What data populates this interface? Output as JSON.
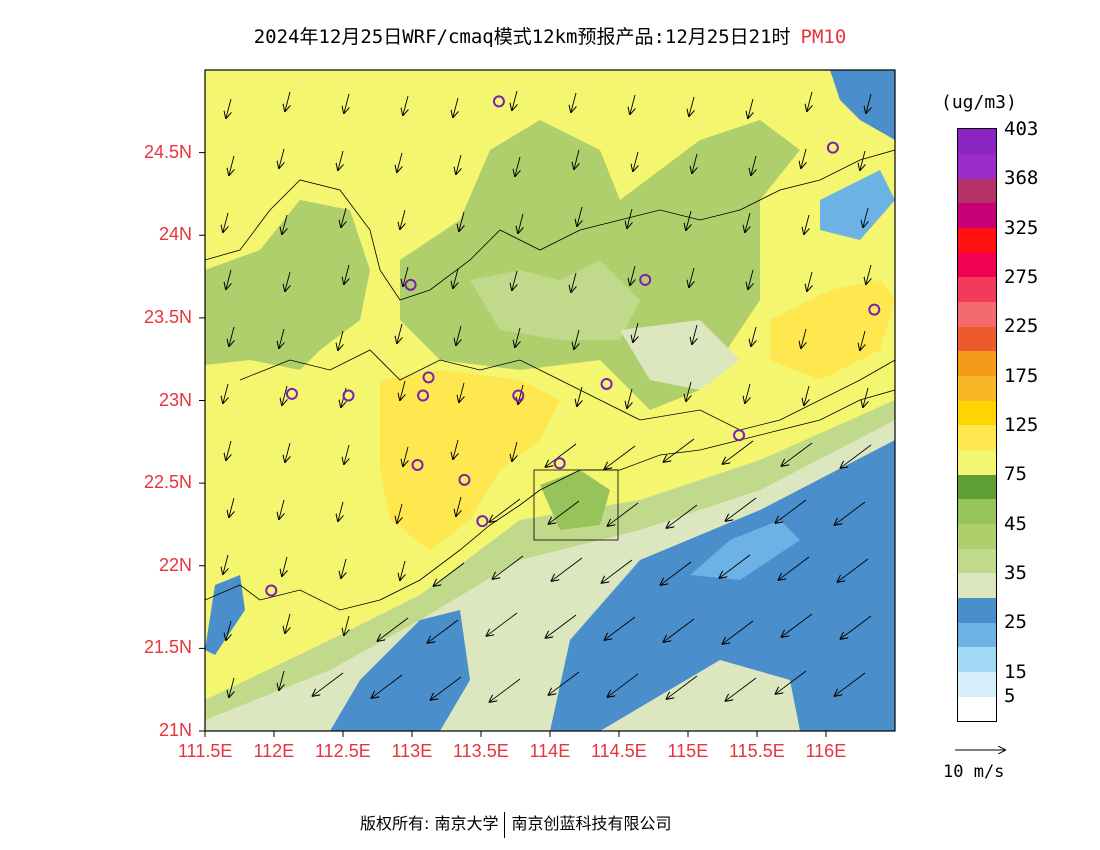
{
  "title": {
    "main": "2024年12月25日WRF/cmaq模式12km预报产品:12月25日21时",
    "species": "PM10"
  },
  "colorbar": {
    "unit": "(ug/m3)",
    "colors": [
      "#ffffff",
      "#d4eefa",
      "#a2d9f5",
      "#6cb2e4",
      "#4a8fcb",
      "#dde7bf",
      "#c1d98a",
      "#aecf6b",
      "#96c35a",
      "#5f9d36",
      "#f3f66e",
      "#ffe84f",
      "#ffd400",
      "#f9b728",
      "#f69a1a",
      "#ee5a2c",
      "#f46a6d",
      "#f23b5c",
      "#f20052",
      "#ff1111",
      "#c70076",
      "#b43067",
      "#9b2acb",
      "#8a25c4"
    ],
    "labels": [
      {
        "text": "403",
        "boundary": 23
      },
      {
        "text": "368",
        "boundary": 21
      },
      {
        "text": "325",
        "boundary": 19
      },
      {
        "text": "275",
        "boundary": 17
      },
      {
        "text": "225",
        "boundary": 15
      },
      {
        "text": "175",
        "boundary": 13
      },
      {
        "text": "125",
        "boundary": 11
      },
      {
        "text": "75",
        "boundary": 9
      },
      {
        "text": "45",
        "boundary": 7
      },
      {
        "text": "35",
        "boundary": 5
      },
      {
        "text": "25",
        "boundary": 3
      },
      {
        "text": "15",
        "boundary": 1
      },
      {
        "text": "5",
        "boundary": 0
      }
    ]
  },
  "wind_reference": {
    "label": "10 m/s"
  },
  "axes": {
    "lat": [
      {
        "text": "24.5N",
        "value": 24.5
      },
      {
        "text": "24N",
        "value": 24.0
      },
      {
        "text": "23.5N",
        "value": 23.5
      },
      {
        "text": "23N",
        "value": 23.0
      },
      {
        "text": "22.5N",
        "value": 22.5
      },
      {
        "text": "22N",
        "value": 22.0
      },
      {
        "text": "21.5N",
        "value": 21.5
      },
      {
        "text": "21N",
        "value": 21.0
      }
    ],
    "lon": [
      {
        "text": "111.5E",
        "value": 111.5
      },
      {
        "text": "112E",
        "value": 112.0
      },
      {
        "text": "112.5E",
        "value": 112.5
      },
      {
        "text": "113E",
        "value": 113.0
      },
      {
        "text": "113.5E",
        "value": 113.5
      },
      {
        "text": "114E",
        "value": 114.0
      },
      {
        "text": "114.5E",
        "value": 114.5
      },
      {
        "text": "115E",
        "value": 115.0
      },
      {
        "text": "115.5E",
        "value": 115.5
      },
      {
        "text": "116E",
        "value": 116.0
      }
    ],
    "lat_range": [
      21.0,
      25.0
    ],
    "lon_range": [
      111.5,
      116.5
    ]
  },
  "footer": {
    "copyright": "版权所有: 南京大学",
    "company": "南京创蓝科技有限公司"
  },
  "stations": [
    {
      "lon": 113.63,
      "lat": 24.81
    },
    {
      "lon": 116.05,
      "lat": 24.53
    },
    {
      "lon": 112.99,
      "lat": 23.7
    },
    {
      "lon": 114.69,
      "lat": 23.73
    },
    {
      "lon": 116.35,
      "lat": 23.55
    },
    {
      "lon": 112.13,
      "lat": 23.04
    },
    {
      "lon": 112.54,
      "lat": 23.03
    },
    {
      "lon": 113.12,
      "lat": 23.14
    },
    {
      "lon": 113.08,
      "lat": 23.03
    },
    {
      "lon": 113.77,
      "lat": 23.03
    },
    {
      "lon": 114.41,
      "lat": 23.1
    },
    {
      "lon": 115.37,
      "lat": 22.79
    },
    {
      "lon": 113.04,
      "lat": 22.61
    },
    {
      "lon": 113.38,
      "lat": 22.52
    },
    {
      "lon": 114.07,
      "lat": 22.62
    },
    {
      "lon": 113.51,
      "lat": 22.27
    },
    {
      "lon": 111.98,
      "lat": 21.85
    }
  ]
}
